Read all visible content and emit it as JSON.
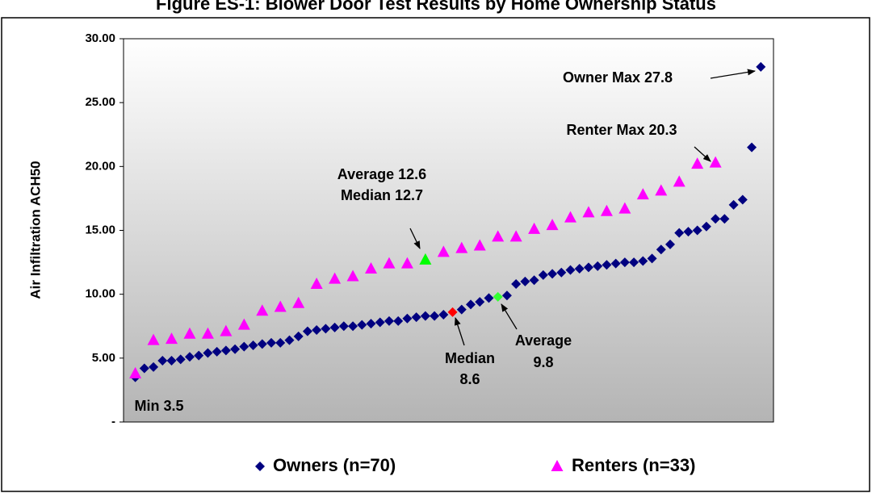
{
  "chart_data": {
    "type": "scatter",
    "title": "Figure ES-1: Blower Door Test Results by Home Ownership Status",
    "y_label": "Air Infiltration ACH50",
    "xlim": [
      -0.3,
      71.4
    ],
    "ylim": [
      0,
      30
    ],
    "yticks": [
      {
        "value": 0,
        "label": "-"
      },
      {
        "value": 5,
        "label": "5.00"
      },
      {
        "value": 10,
        "label": "10.00"
      },
      {
        "value": 15,
        "label": "15.00"
      },
      {
        "value": 20,
        "label": "20.00"
      },
      {
        "value": 25,
        "label": "25.00"
      },
      {
        "value": 30,
        "label": "30.00"
      }
    ],
    "series": [
      {
        "name": "Owners (n=70)",
        "marker": "diamond",
        "color": "#000080",
        "x": [
          1,
          2,
          3,
          4,
          5,
          6,
          7,
          8,
          9,
          10,
          11,
          12,
          13,
          14,
          15,
          16,
          17,
          18,
          19,
          20,
          21,
          22,
          23,
          24,
          25,
          26,
          27,
          28,
          29,
          30,
          31,
          32,
          33,
          34,
          35,
          36,
          37,
          38,
          39,
          40,
          41,
          42,
          43,
          44,
          45,
          46,
          47,
          48,
          49,
          50,
          51,
          52,
          53,
          54,
          55,
          56,
          57,
          58,
          59,
          60,
          61,
          62,
          63,
          64,
          65,
          66,
          67,
          68,
          69,
          70
        ],
        "values": [
          3.5,
          4.2,
          4.3,
          4.8,
          4.8,
          4.9,
          5.1,
          5.2,
          5.4,
          5.5,
          5.6,
          5.7,
          5.9,
          6.0,
          6.1,
          6.2,
          6.2,
          6.4,
          6.7,
          7.1,
          7.2,
          7.3,
          7.4,
          7.5,
          7.5,
          7.6,
          7.7,
          7.8,
          7.9,
          7.9,
          8.1,
          8.2,
          8.3,
          8.3,
          8.4,
          8.6,
          8.8,
          9.2,
          9.4,
          9.7,
          9.8,
          9.9,
          10.8,
          11.0,
          11.1,
          11.5,
          11.6,
          11.7,
          11.9,
          12.0,
          12.1,
          12.2,
          12.3,
          12.4,
          12.5,
          12.5,
          12.6,
          12.8,
          13.5,
          13.9,
          14.8,
          14.9,
          15.0,
          15.3,
          15.9,
          15.9,
          17.0,
          17.4,
          21.5,
          27.8
        ],
        "highlights": [
          {
            "index": 35,
            "color": "#ff0000"
          },
          {
            "index": 40,
            "color": "#33ff33"
          }
        ]
      },
      {
        "name": "Renters (n=33)",
        "marker": "triangle",
        "color": "#ff00ff",
        "x": [
          1,
          3,
          5,
          7,
          9,
          11,
          13,
          15,
          17,
          19,
          21,
          23,
          25,
          27,
          29,
          31,
          33,
          35,
          37,
          39,
          41,
          43,
          45,
          47,
          49,
          51,
          53,
          55,
          57,
          59,
          61,
          63,
          65
        ],
        "values": [
          3.8,
          6.4,
          6.5,
          6.9,
          6.9,
          7.1,
          7.6,
          8.7,
          9.0,
          9.3,
          10.8,
          11.2,
          11.4,
          12.0,
          12.4,
          12.4,
          12.7,
          13.3,
          13.6,
          13.8,
          14.5,
          14.5,
          15.1,
          15.4,
          16.0,
          16.4,
          16.5,
          16.7,
          17.8,
          18.1,
          18.8,
          20.2,
          20.3
        ],
        "highlights": [
          {
            "index": 16,
            "color": "#00ff00"
          }
        ]
      }
    ],
    "annotations": [
      {
        "lines": [
          "Owner Max 27.8"
        ]
      },
      {
        "lines": [
          "Renter Max 20.3"
        ]
      },
      {
        "lines": [
          "Average 12.6",
          "Median 12.7"
        ]
      },
      {
        "lines": [
          "Median",
          "8.6"
        ]
      },
      {
        "lines": [
          "Average",
          "9.8"
        ]
      },
      {
        "lines": [
          "Min 3.5"
        ]
      }
    ],
    "plot_gradient": [
      "#ffffff",
      "#b4b4b4"
    ]
  }
}
